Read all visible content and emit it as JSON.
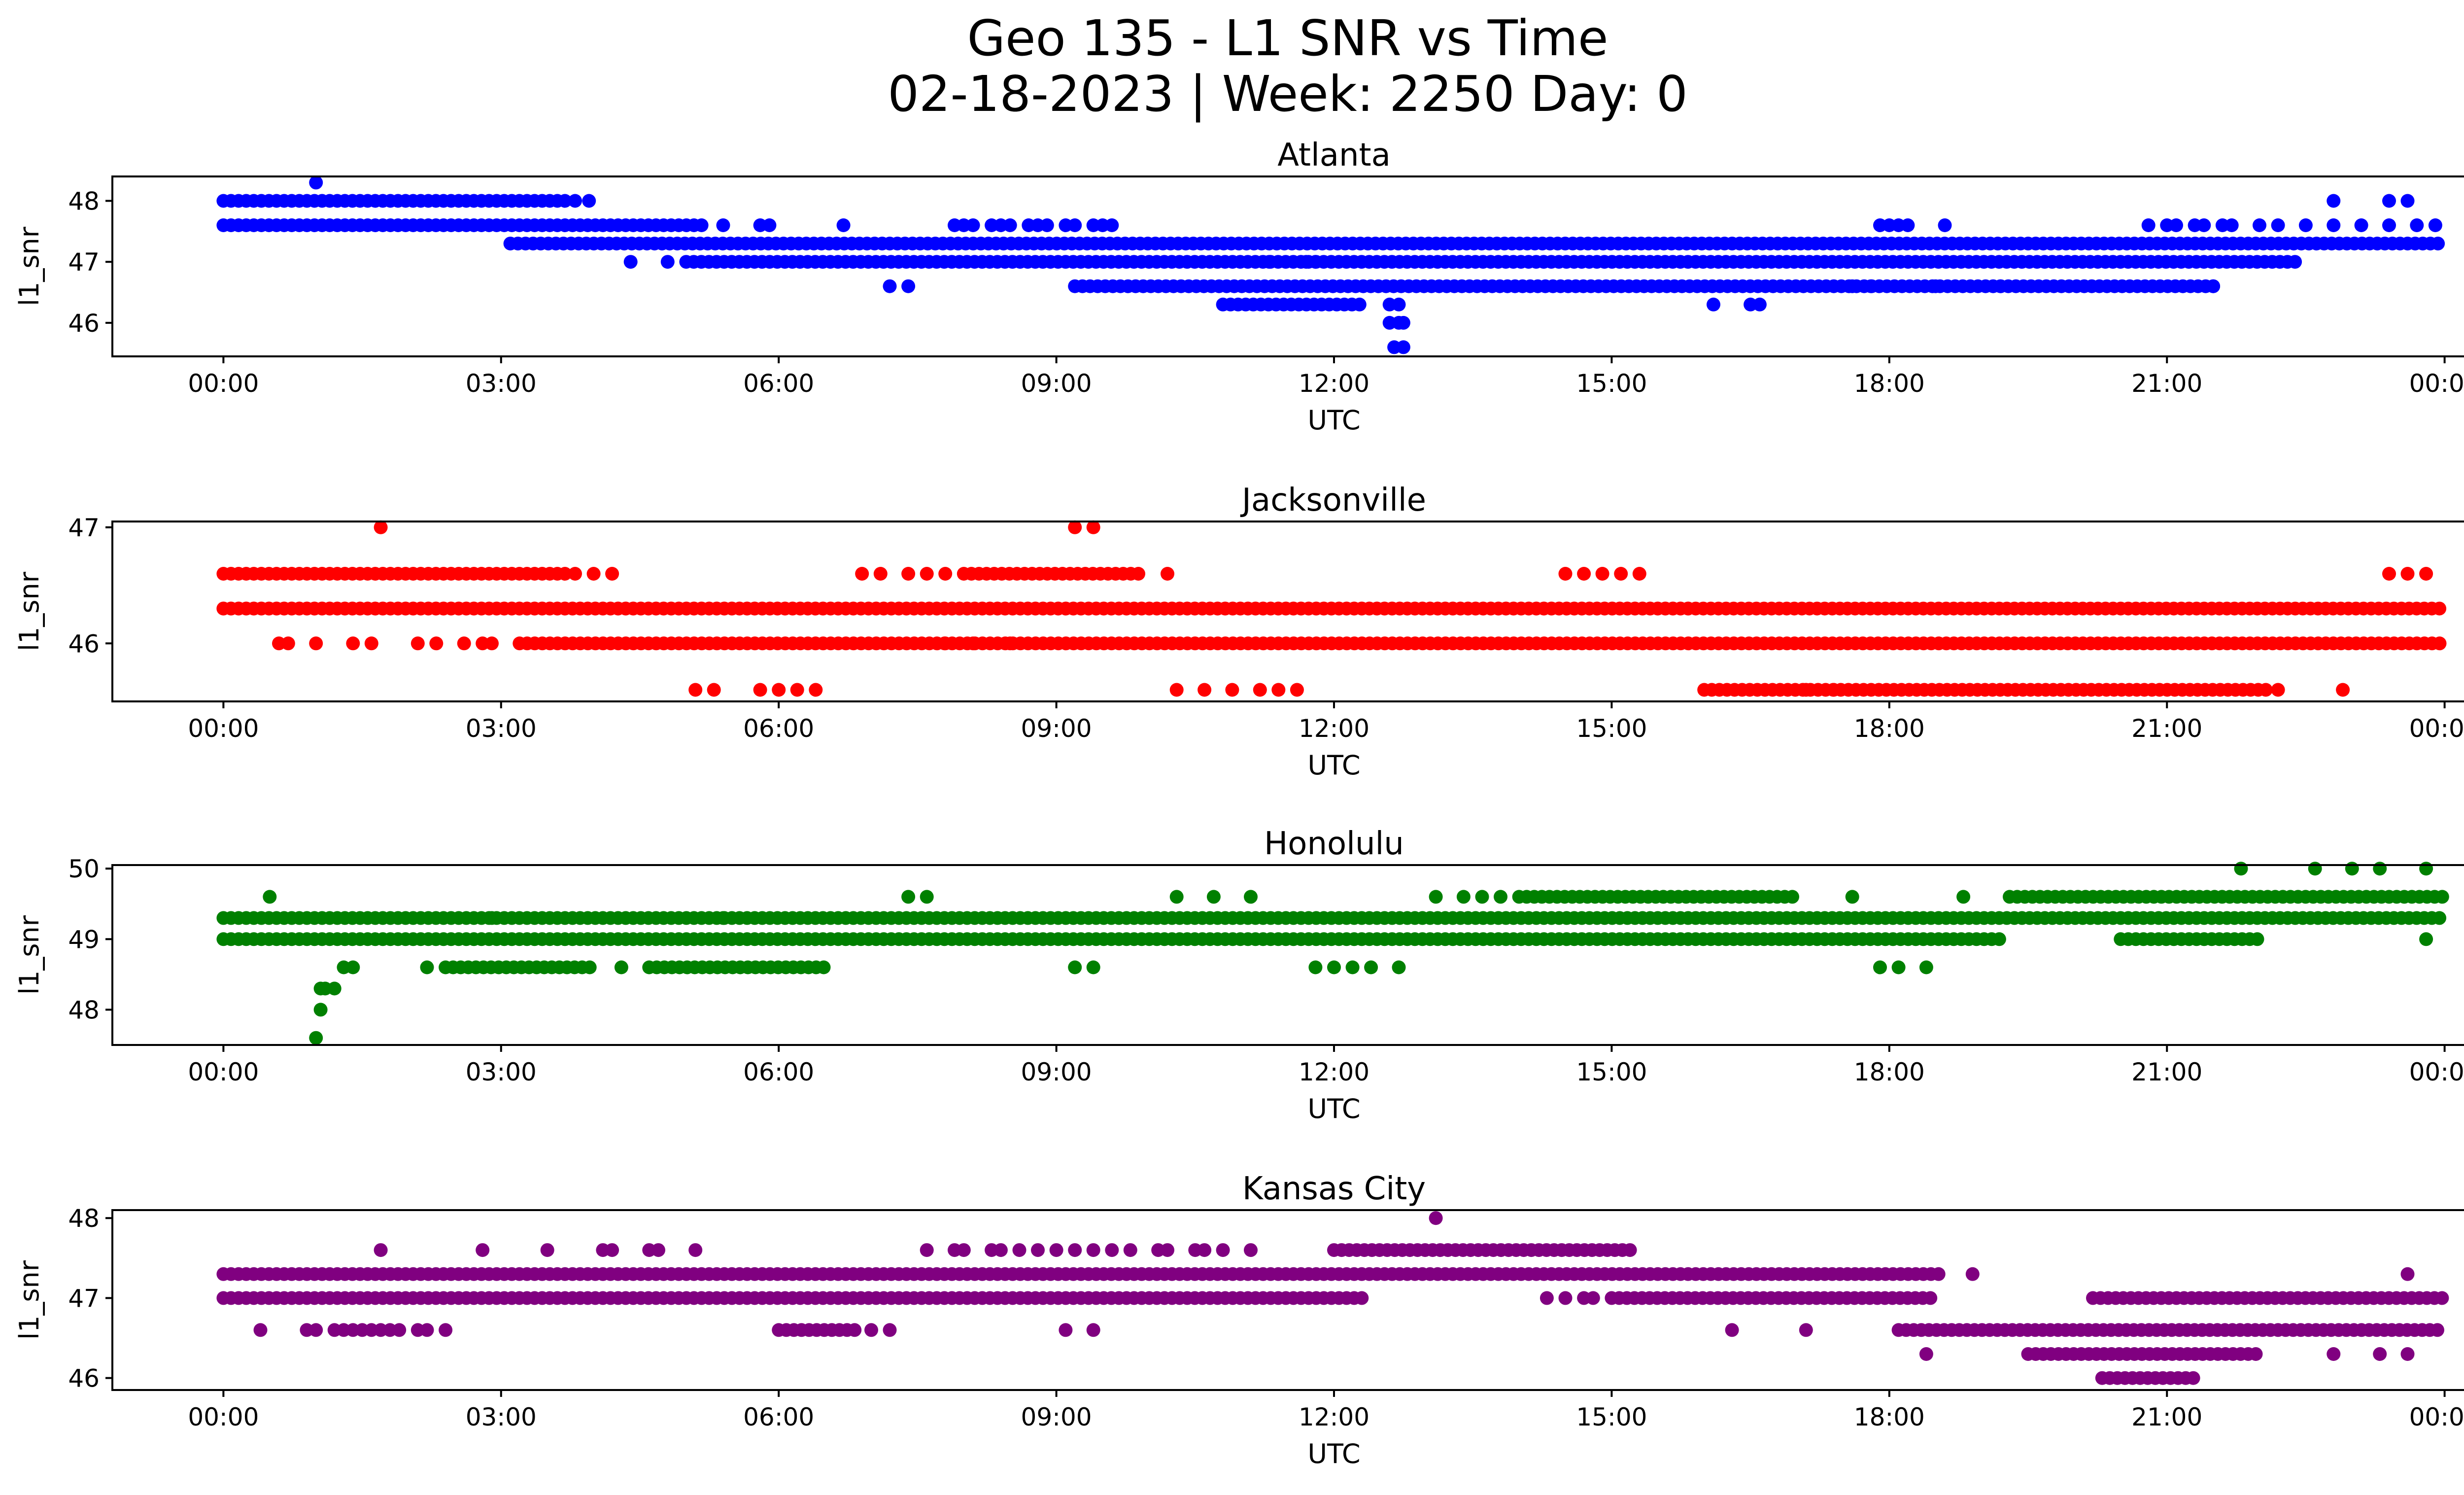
{
  "figure": {
    "title_line1": "Geo 135 - L1 SNR vs Time",
    "title_line2": "02-18-2023 | Week: 2250 Day: 0"
  },
  "chart_data": [
    {
      "type": "scatter",
      "title": "Atlanta",
      "xlabel": "UTC",
      "ylabel": "l1_snr",
      "color": "#0000ff",
      "x_ticks": [
        "00:00",
        "03:00",
        "06:00",
        "09:00",
        "12:00",
        "15:00",
        "18:00",
        "21:00",
        "00:00"
      ],
      "x_tick_hours": [
        0,
        3,
        6,
        9,
        12,
        15,
        18,
        21,
        24
      ],
      "xlim": [
        -1.2,
        25.2
      ],
      "y_ticks": [
        46,
        47,
        48
      ],
      "ylim": [
        45.45,
        48.4
      ],
      "points": {
        "runs": [
          [
            48.0,
            0.0,
            3.7
          ],
          [
            47.6,
            0.0,
            5.2
          ],
          [
            47.3,
            3.1,
            24.0
          ],
          [
            47.0,
            5.0,
            22.4
          ],
          [
            46.6,
            9.2,
            21.5
          ],
          [
            46.3,
            10.8,
            12.3
          ]
        ],
        "singles": [
          [
            1.0,
            48.3
          ],
          [
            3.8,
            48.0
          ],
          [
            3.95,
            48.0
          ],
          [
            22.8,
            48.0
          ],
          [
            23.4,
            48.0
          ],
          [
            23.6,
            48.0
          ],
          [
            5.4,
            47.6
          ],
          [
            5.8,
            47.6
          ],
          [
            5.9,
            47.6
          ],
          [
            6.7,
            47.6
          ],
          [
            7.9,
            47.6
          ],
          [
            8.0,
            47.6
          ],
          [
            8.1,
            47.6
          ],
          [
            8.3,
            47.6
          ],
          [
            8.4,
            47.6
          ],
          [
            8.5,
            47.6
          ],
          [
            8.7,
            47.6
          ],
          [
            8.8,
            47.6
          ],
          [
            8.9,
            47.6
          ],
          [
            9.1,
            47.6
          ],
          [
            9.2,
            47.6
          ],
          [
            9.4,
            47.6
          ],
          [
            9.5,
            47.6
          ],
          [
            9.6,
            47.6
          ],
          [
            17.9,
            47.6
          ],
          [
            18.0,
            47.6
          ],
          [
            18.1,
            47.6
          ],
          [
            18.2,
            47.6
          ],
          [
            18.6,
            47.6
          ],
          [
            20.8,
            47.6
          ],
          [
            21.0,
            47.6
          ],
          [
            21.1,
            47.6
          ],
          [
            21.3,
            47.6
          ],
          [
            21.4,
            47.6
          ],
          [
            21.6,
            47.6
          ],
          [
            21.7,
            47.6
          ],
          [
            22.0,
            47.6
          ],
          [
            22.2,
            47.6
          ],
          [
            22.5,
            47.6
          ],
          [
            22.8,
            47.6
          ],
          [
            23.1,
            47.6
          ],
          [
            23.4,
            47.6
          ],
          [
            23.7,
            47.6
          ],
          [
            23.9,
            47.6
          ],
          [
            4.4,
            47.0
          ],
          [
            4.8,
            47.0
          ],
          [
            11.3,
            47.0
          ],
          [
            11.7,
            47.0
          ],
          [
            11.8,
            47.0
          ],
          [
            7.2,
            46.6
          ],
          [
            7.4,
            46.6
          ],
          [
            17.6,
            46.6
          ],
          [
            17.8,
            46.6
          ],
          [
            18.5,
            46.6
          ],
          [
            19.2,
            46.6
          ],
          [
            21.5,
            46.6
          ],
          [
            16.1,
            46.3
          ],
          [
            16.5,
            46.3
          ],
          [
            16.6,
            46.3
          ],
          [
            12.6,
            46.3
          ],
          [
            12.7,
            46.3
          ],
          [
            12.6,
            46.0
          ],
          [
            12.7,
            46.0
          ],
          [
            12.75,
            46.0
          ],
          [
            12.65,
            45.6
          ],
          [
            12.75,
            45.6
          ]
        ]
      }
    },
    {
      "type": "scatter",
      "title": "Jacksonville",
      "xlabel": "UTC",
      "ylabel": "l1_snr",
      "color": "#ff0000",
      "x_ticks": [
        "00:00",
        "03:00",
        "06:00",
        "09:00",
        "12:00",
        "15:00",
        "18:00",
        "21:00",
        "00:00"
      ],
      "x_tick_hours": [
        0,
        3,
        6,
        9,
        12,
        15,
        18,
        21,
        24
      ],
      "xlim": [
        -1.2,
        25.2
      ],
      "y_ticks": [
        46,
        47
      ],
      "ylim": [
        45.5,
        47.05
      ],
      "points": {
        "runs": [
          [
            46.6,
            0.0,
            3.7
          ],
          [
            46.3,
            0.0,
            24.0
          ],
          [
            46.0,
            3.2,
            24.0
          ],
          [
            45.6,
            16.0,
            22.1
          ],
          [
            46.6,
            8.0,
            9.9
          ],
          [
            46.3,
            0.0,
            15.9
          ]
        ],
        "singles": [
          [
            1.7,
            47.0
          ],
          [
            9.2,
            47.0
          ],
          [
            9.4,
            47.0
          ],
          [
            3.8,
            46.6
          ],
          [
            4.0,
            46.6
          ],
          [
            4.2,
            46.6
          ],
          [
            6.9,
            46.6
          ],
          [
            7.1,
            46.6
          ],
          [
            7.4,
            46.6
          ],
          [
            7.6,
            46.6
          ],
          [
            7.8,
            46.6
          ],
          [
            10.2,
            46.6
          ],
          [
            14.5,
            46.6
          ],
          [
            14.7,
            46.6
          ],
          [
            14.9,
            46.6
          ],
          [
            15.1,
            46.6
          ],
          [
            15.3,
            46.6
          ],
          [
            23.4,
            46.6
          ],
          [
            23.6,
            46.6
          ],
          [
            23.8,
            46.6
          ],
          [
            0.6,
            46.0
          ],
          [
            0.7,
            46.0
          ],
          [
            1.0,
            46.0
          ],
          [
            1.4,
            46.0
          ],
          [
            1.6,
            46.0
          ],
          [
            2.1,
            46.0
          ],
          [
            2.3,
            46.0
          ],
          [
            2.6,
            46.0
          ],
          [
            2.8,
            46.0
          ],
          [
            2.9,
            46.0
          ],
          [
            7.8,
            46.0
          ],
          [
            8.1,
            46.0
          ],
          [
            8.5,
            46.0
          ],
          [
            5.1,
            45.6
          ],
          [
            5.3,
            45.6
          ],
          [
            5.8,
            45.6
          ],
          [
            6.0,
            45.6
          ],
          [
            6.2,
            45.6
          ],
          [
            6.4,
            45.6
          ],
          [
            10.3,
            45.6
          ],
          [
            10.6,
            45.6
          ],
          [
            10.9,
            45.6
          ],
          [
            11.2,
            45.6
          ],
          [
            11.4,
            45.6
          ],
          [
            11.6,
            45.6
          ],
          [
            17.1,
            45.6
          ],
          [
            17.4,
            45.6
          ],
          [
            22.2,
            45.6
          ],
          [
            22.9,
            45.6
          ]
        ]
      }
    },
    {
      "type": "scatter",
      "title": "Honolulu",
      "xlabel": "UTC",
      "ylabel": "l1_snr",
      "color": "#008000",
      "x_ticks": [
        "00:00",
        "03:00",
        "06:00",
        "09:00",
        "12:00",
        "15:00",
        "18:00",
        "21:00",
        "00:00"
      ],
      "x_tick_hours": [
        0,
        3,
        6,
        9,
        12,
        15,
        18,
        21,
        24
      ],
      "xlim": [
        -1.2,
        25.2
      ],
      "y_ticks": [
        48,
        49,
        50
      ],
      "ylim": [
        47.5,
        50.05
      ],
      "points": {
        "runs": [
          [
            49.3,
            0.0,
            24.0
          ],
          [
            49.0,
            0.0,
            19.2
          ],
          [
            49.6,
            14.0,
            17.0
          ],
          [
            49.6,
            19.3,
            24.0
          ],
          [
            48.6,
            2.4,
            4.0
          ],
          [
            48.6,
            4.6,
            6.5
          ],
          [
            49.0,
            20.5,
            22.0
          ]
        ],
        "singles": [
          [
            1.05,
            48.3
          ],
          [
            1.1,
            48.3
          ],
          [
            1.2,
            48.3
          ],
          [
            1.05,
            48.0
          ],
          [
            1.0,
            47.6
          ],
          [
            1.3,
            48.6
          ],
          [
            1.4,
            48.6
          ],
          [
            2.2,
            48.6
          ],
          [
            4.3,
            48.6
          ],
          [
            9.2,
            48.6
          ],
          [
            9.4,
            48.6
          ],
          [
            11.8,
            48.6
          ],
          [
            12.0,
            48.6
          ],
          [
            12.2,
            48.6
          ],
          [
            12.4,
            48.6
          ],
          [
            12.7,
            48.6
          ],
          [
            17.9,
            48.6
          ],
          [
            18.1,
            48.6
          ],
          [
            18.4,
            48.6
          ],
          [
            0.5,
            49.6
          ],
          [
            7.4,
            49.6
          ],
          [
            7.6,
            49.6
          ],
          [
            10.3,
            49.6
          ],
          [
            10.7,
            49.6
          ],
          [
            11.1,
            49.6
          ],
          [
            13.1,
            49.6
          ],
          [
            13.4,
            49.6
          ],
          [
            13.6,
            49.6
          ],
          [
            13.8,
            49.6
          ],
          [
            17.6,
            49.6
          ],
          [
            18.8,
            49.6
          ],
          [
            21.8,
            50.0
          ],
          [
            22.6,
            50.0
          ],
          [
            23.0,
            50.0
          ],
          [
            23.3,
            50.0
          ],
          [
            23.8,
            50.0
          ],
          [
            23.8,
            49.0
          ],
          [
            5.4,
            49.3
          ],
          [
            2.9,
            49.3
          ]
        ]
      }
    },
    {
      "type": "scatter",
      "title": "Kansas City",
      "xlabel": "UTC",
      "ylabel": "l1_snr",
      "color": "#800080",
      "x_ticks": [
        "00:00",
        "03:00",
        "06:00",
        "09:00",
        "12:00",
        "15:00",
        "18:00",
        "21:00",
        "00:00"
      ],
      "x_tick_hours": [
        0,
        3,
        6,
        9,
        12,
        15,
        18,
        21,
        24
      ],
      "xlim": [
        -1.2,
        25.2
      ],
      "y_ticks": [
        46,
        47,
        48
      ],
      "ylim": [
        45.85,
        48.1
      ],
      "points": {
        "runs": [
          [
            47.3,
            0.0,
            18.6
          ],
          [
            47.0,
            0.0,
            12.3
          ],
          [
            47.0,
            15.0,
            18.5
          ],
          [
            47.0,
            20.2,
            24.0
          ],
          [
            46.6,
            18.1,
            24.0
          ],
          [
            46.3,
            19.5,
            22.0
          ],
          [
            47.6,
            12.0,
            15.2
          ],
          [
            46.0,
            20.3,
            21.3
          ],
          [
            46.6,
            6.0,
            6.9
          ]
        ],
        "singles": [
          [
            1.7,
            47.6
          ],
          [
            2.8,
            47.6
          ],
          [
            3.5,
            47.6
          ],
          [
            4.1,
            47.6
          ],
          [
            4.2,
            47.6
          ],
          [
            4.6,
            47.6
          ],
          [
            4.7,
            47.6
          ],
          [
            5.1,
            47.6
          ],
          [
            7.6,
            47.6
          ],
          [
            7.9,
            47.6
          ],
          [
            8.0,
            47.6
          ],
          [
            8.3,
            47.6
          ],
          [
            8.4,
            47.6
          ],
          [
            8.6,
            47.6
          ],
          [
            8.8,
            47.6
          ],
          [
            9.0,
            47.6
          ],
          [
            9.2,
            47.6
          ],
          [
            9.4,
            47.6
          ],
          [
            9.6,
            47.6
          ],
          [
            9.8,
            47.6
          ],
          [
            10.1,
            47.6
          ],
          [
            10.2,
            47.6
          ],
          [
            10.5,
            47.6
          ],
          [
            10.6,
            47.6
          ],
          [
            10.8,
            47.6
          ],
          [
            11.1,
            47.6
          ],
          [
            13.1,
            48.0
          ],
          [
            18.9,
            47.3
          ],
          [
            23.6,
            47.3
          ],
          [
            14.3,
            47.0
          ],
          [
            14.5,
            47.0
          ],
          [
            14.7,
            47.0
          ],
          [
            14.8,
            47.0
          ],
          [
            0.4,
            46.6
          ],
          [
            0.9,
            46.6
          ],
          [
            1.0,
            46.6
          ],
          [
            1.2,
            46.6
          ],
          [
            1.3,
            46.6
          ],
          [
            1.4,
            46.6
          ],
          [
            1.5,
            46.6
          ],
          [
            1.6,
            46.6
          ],
          [
            1.7,
            46.6
          ],
          [
            1.8,
            46.6
          ],
          [
            1.9,
            46.6
          ],
          [
            2.1,
            46.6
          ],
          [
            2.2,
            46.6
          ],
          [
            2.4,
            46.6
          ],
          [
            7.0,
            46.6
          ],
          [
            7.2,
            46.6
          ],
          [
            9.1,
            46.6
          ],
          [
            9.4,
            46.6
          ],
          [
            16.3,
            46.6
          ],
          [
            17.1,
            46.6
          ],
          [
            18.4,
            46.3
          ],
          [
            22.8,
            46.3
          ],
          [
            23.3,
            46.3
          ],
          [
            23.6,
            46.3
          ]
        ]
      }
    }
  ]
}
